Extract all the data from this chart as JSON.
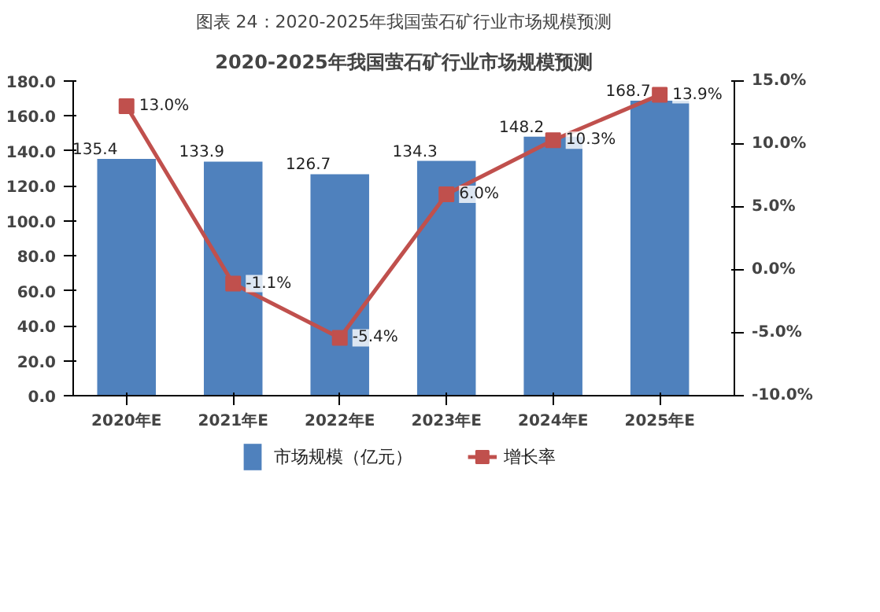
{
  "chart_data": {
    "type": "bar",
    "title": "图表 24：2020-2025年我国萤石矿行业市场规模预测",
    "subtitle": "2020-2025年我国萤石矿行业市场规模预测",
    "categories": [
      "2020年E",
      "2021年E",
      "2022年E",
      "2023年E",
      "2024年E",
      "2025年E"
    ],
    "series": [
      {
        "name": "市场规模（亿元）",
        "color": "#4f81bd",
        "values": [
          135.4,
          133.9,
          126.7,
          134.3,
          148.2,
          168.7
        ],
        "value_labels": [
          "135.4",
          "133.9",
          "126.7",
          "134.3",
          "148.2",
          "168.7"
        ]
      },
      {
        "name": "增长率",
        "type": "line",
        "axis": "y2",
        "color": "#c0504d",
        "marker": "square",
        "values": [
          13.0,
          -1.1,
          -5.4,
          6.0,
          10.3,
          13.9
        ],
        "value_labels": [
          "13.0%",
          "-1.1%",
          "-5.4%",
          "6.0%",
          "10.3%",
          "13.9%"
        ]
      }
    ],
    "ylim": [
      0,
      180
    ],
    "yticks": [
      {
        "value": 0,
        "label": "0.0"
      },
      {
        "value": 20,
        "label": "20.0"
      },
      {
        "value": 40,
        "label": "40.0"
      },
      {
        "value": 60,
        "label": "60.0"
      },
      {
        "value": 80,
        "label": "80.0"
      },
      {
        "value": 100,
        "label": "100.0"
      },
      {
        "value": 120,
        "label": "120.0"
      },
      {
        "value": 140,
        "label": "140.0"
      },
      {
        "value": 160,
        "label": "160.0"
      },
      {
        "value": 180,
        "label": "180.0"
      }
    ],
    "y2lim": [
      -10,
      15
    ],
    "y2ticks": [
      {
        "value": -10,
        "label": "-10.0%"
      },
      {
        "value": -5,
        "label": "-5.0%"
      },
      {
        "value": 0,
        "label": "0.0%"
      },
      {
        "value": 5,
        "label": "5.0%"
      },
      {
        "value": 10,
        "label": "10.0%"
      },
      {
        "value": 15,
        "label": "15.0%"
      }
    ],
    "legend": "bottom",
    "grid": false
  }
}
